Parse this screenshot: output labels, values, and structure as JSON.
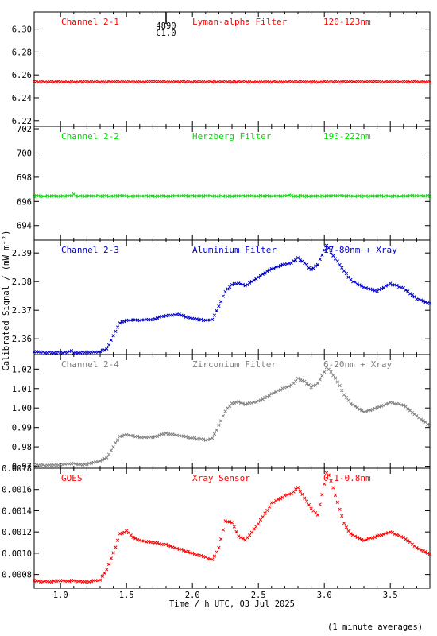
{
  "figure": {
    "xlabel": "Time / h UTC, 03 Jul 2025",
    "ylabel": "Calibrated Signal / (mW m⁻²)",
    "footnote": "(1 minute averages)",
    "marker_label_top": "4890",
    "marker_label_bottom": "C1.0",
    "marker_x": 1.8
  },
  "chart_data": [
    {
      "type": "scatter",
      "channel": "Channel 2-1",
      "filter": "Lyman-alpha Filter",
      "band": "120-123nm",
      "color": "#ff0000",
      "xlim": [
        0.8,
        3.8
      ],
      "ylim": [
        6.215,
        6.315
      ],
      "yticks": [
        6.22,
        6.24,
        6.26,
        6.28,
        6.3
      ],
      "ytick_labels": [
        "6.22",
        "6.24",
        "6.26",
        "6.28",
        "6.30"
      ],
      "x": [
        0.8,
        3.8
      ],
      "y": [
        6.254,
        6.254
      ]
    },
    {
      "type": "scatter",
      "channel": "Channel 2-2",
      "filter": "Herzberg Filter",
      "band": "190-222nm",
      "color": "#00e000",
      "xlim": [
        0.8,
        3.8
      ],
      "ylim": [
        692.8,
        702.2
      ],
      "yticks": [
        694,
        696,
        698,
        700,
        702
      ],
      "ytick_labels": [
        "694",
        "696",
        "698",
        "700",
        "702"
      ],
      "x": [
        0.8,
        1.08,
        1.1,
        1.12,
        2.72,
        2.74,
        2.76,
        3.8
      ],
      "y": [
        696.45,
        696.45,
        696.6,
        696.45,
        696.45,
        696.6,
        696.45,
        696.45
      ]
    },
    {
      "type": "scatter",
      "channel": "Channel 2-3",
      "filter": "Aluminium Filter",
      "band": "17-80nm + Xray",
      "color": "#0000cc",
      "xlim": [
        0.8,
        3.8
      ],
      "ylim": [
        2.3545,
        2.3945
      ],
      "yticks": [
        2.36,
        2.37,
        2.38,
        2.39
      ],
      "ytick_labels": [
        "2.36",
        "2.37",
        "2.38",
        "2.39"
      ],
      "x": [
        0.8,
        0.9,
        1.0,
        1.05,
        1.08,
        1.1,
        1.2,
        1.3,
        1.35,
        1.4,
        1.45,
        1.5,
        1.55,
        1.6,
        1.7,
        1.8,
        1.9,
        2.0,
        2.1,
        2.15,
        2.2,
        2.25,
        2.3,
        2.35,
        2.4,
        2.5,
        2.6,
        2.7,
        2.75,
        2.8,
        2.85,
        2.9,
        2.95,
        3.0,
        3.02,
        3.05,
        3.1,
        3.15,
        3.2,
        3.3,
        3.4,
        3.5,
        3.6,
        3.7,
        3.8
      ],
      "y": [
        2.3555,
        2.3552,
        2.3552,
        2.3553,
        2.3558,
        2.3552,
        2.3553,
        2.3555,
        2.3565,
        2.361,
        2.3655,
        2.3665,
        2.3665,
        2.3665,
        2.3668,
        2.3682,
        2.3685,
        2.367,
        2.3665,
        2.3668,
        2.3715,
        2.3765,
        2.379,
        2.3795,
        2.3785,
        2.3815,
        2.3845,
        2.3862,
        2.3865,
        2.3882,
        2.3865,
        2.3842,
        2.386,
        2.391,
        2.3928,
        2.3902,
        2.387,
        2.3838,
        2.3805,
        2.378,
        2.3768,
        2.3792,
        2.3778,
        2.374,
        2.3722
      ]
    },
    {
      "type": "scatter",
      "channel": "Channel 2-4",
      "filter": "Zirconium Filter",
      "band": "6-20nm + Xray",
      "color": "#808080",
      "xlim": [
        0.8,
        3.8
      ],
      "ylim": [
        0.969,
        1.0275
      ],
      "yticks": [
        0.97,
        0.98,
        0.99,
        1.0,
        1.01,
        1.02
      ],
      "ytick_labels": [
        "0.97",
        "0.98",
        "0.99",
        "1.00",
        "1.01",
        "1.02"
      ],
      "x": [
        0.8,
        0.9,
        1.0,
        1.05,
        1.1,
        1.15,
        1.2,
        1.3,
        1.35,
        1.4,
        1.45,
        1.5,
        1.6,
        1.7,
        1.8,
        1.9,
        2.0,
        2.1,
        2.15,
        2.2,
        2.25,
        2.3,
        2.35,
        2.4,
        2.5,
        2.6,
        2.7,
        2.75,
        2.8,
        2.85,
        2.9,
        2.95,
        3.0,
        3.02,
        3.05,
        3.1,
        3.15,
        3.2,
        3.3,
        3.4,
        3.5,
        3.6,
        3.7,
        3.8
      ],
      "y": [
        0.9708,
        0.9705,
        0.9707,
        0.9712,
        0.9715,
        0.9708,
        0.9712,
        0.9725,
        0.9745,
        0.98,
        0.9855,
        0.9862,
        0.985,
        0.985,
        0.9868,
        0.986,
        0.9845,
        0.9835,
        0.9845,
        0.991,
        0.9985,
        1.0025,
        1.003,
        1.0018,
        1.0035,
        1.0072,
        1.0105,
        1.0115,
        1.0152,
        1.0135,
        1.0108,
        1.0125,
        1.0185,
        1.0212,
        1.0185,
        1.0135,
        1.007,
        1.0022,
        0.998,
        1.0,
        1.0028,
        1.0015,
        0.996,
        0.991
      ]
    },
    {
      "type": "scatter",
      "channel": "GOES",
      "filter": "Xray Sensor",
      "band": "0.1-0.8nm",
      "color": "#ff0000",
      "xlim": [
        0.8,
        3.8
      ],
      "ylim": [
        0.00067,
        0.0018
      ],
      "yticks": [
        0.0008,
        0.001,
        0.0012,
        0.0014,
        0.0016,
        0.0018
      ],
      "ytick_labels": [
        "0.0008",
        "0.0010",
        "0.0012",
        "0.0014",
        "0.0016",
        "0.0018"
      ],
      "x": [
        0.8,
        0.9,
        1.0,
        1.1,
        1.2,
        1.3,
        1.35,
        1.4,
        1.45,
        1.5,
        1.55,
        1.6,
        1.7,
        1.8,
        1.9,
        2.0,
        2.1,
        2.15,
        2.2,
        2.25,
        2.3,
        2.35,
        2.4,
        2.5,
        2.6,
        2.7,
        2.75,
        2.8,
        2.85,
        2.9,
        2.95,
        3.0,
        3.02,
        3.05,
        3.1,
        3.15,
        3.2,
        3.3,
        3.4,
        3.5,
        3.6,
        3.7,
        3.8
      ],
      "y": [
        0.00074,
        0.00073,
        0.00074,
        0.00074,
        0.00073,
        0.00075,
        0.00085,
        0.001,
        0.00118,
        0.00121,
        0.00115,
        0.00112,
        0.0011,
        0.00108,
        0.00104,
        0.001,
        0.00096,
        0.00094,
        0.00105,
        0.0013,
        0.00129,
        0.00116,
        0.00112,
        0.00128,
        0.00147,
        0.00154,
        0.00156,
        0.00162,
        0.00152,
        0.00142,
        0.00136,
        0.00165,
        0.00178,
        0.00168,
        0.00148,
        0.00128,
        0.00118,
        0.00112,
        0.00116,
        0.0012,
        0.00115,
        0.00105,
        0.00099
      ]
    }
  ],
  "xaxis": {
    "xlim": [
      0.8,
      3.8
    ],
    "ticks": [
      1.0,
      1.5,
      2.0,
      2.5,
      3.0,
      3.5
    ],
    "tick_labels": [
      "1.0",
      "1.5",
      "2.0",
      "2.5",
      "3.0",
      "3.5"
    ]
  }
}
